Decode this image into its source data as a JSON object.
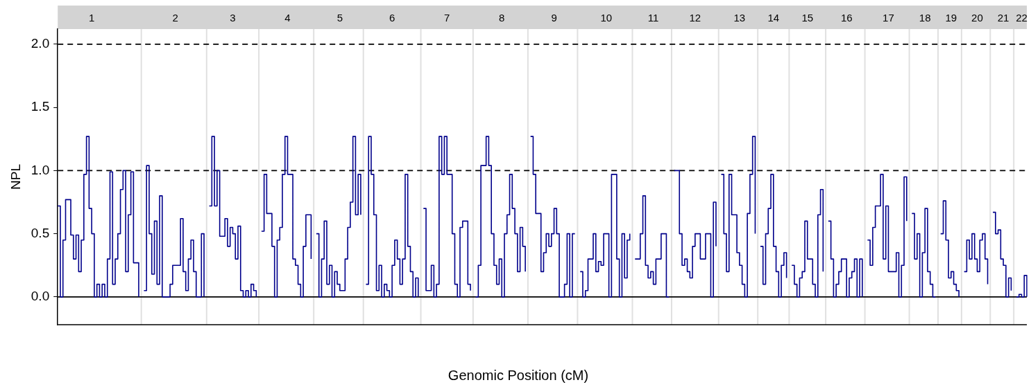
{
  "chart_data": {
    "type": "step",
    "xlabel": "Genomic Position (cM)",
    "ylabel": "NPL",
    "ylim": [
      -0.22,
      2.12
    ],
    "yticks": [
      {
        "value": 0,
        "label": "0.0"
      },
      {
        "value": 0.5,
        "label": "0.5"
      },
      {
        "value": 1,
        "label": "1.0"
      },
      {
        "value": 1.5,
        "label": "1.5"
      },
      {
        "value": 2,
        "label": "2.0"
      }
    ],
    "ref_lines": [
      {
        "axis": "y",
        "value": 0,
        "color": "#000000",
        "line_style": "solid"
      },
      {
        "axis": "y",
        "value": 1,
        "color": "#000000",
        "line_style": "dashed"
      },
      {
        "axis": "y",
        "value": 2,
        "color": "#000000",
        "line_style": "dashed"
      }
    ],
    "categories": [
      null,
      null,
      null,
      null,
      null,
      null,
      null,
      null,
      null,
      null,
      null,
      null,
      null,
      "1",
      null,
      null,
      null,
      null,
      null,
      null,
      null,
      null,
      null,
      null,
      null,
      null,
      null,
      null,
      null,
      null,
      null,
      null,
      null,
      null,
      null,
      null,
      null,
      null,
      null,
      null,
      null,
      null,
      null,
      null,
      null,
      "2",
      null,
      null,
      null,
      null,
      null,
      null,
      null,
      null,
      null,
      null,
      null,
      null,
      null,
      null,
      null,
      null,
      null,
      null,
      null,
      null,
      null,
      "3",
      null,
      null,
      null,
      null,
      null,
      null,
      null,
      null,
      null,
      null,
      null,
      null,
      null,
      null,
      null,
      null,
      null,
      null,
      null,
      null,
      "4",
      null,
      null,
      null,
      null,
      null,
      null,
      null,
      null,
      null,
      null,
      null,
      null,
      null,
      null,
      null,
      null,
      null,
      null,
      null,
      "5",
      null,
      null,
      null,
      null,
      null,
      null,
      null,
      null,
      null,
      null,
      null,
      null,
      null,
      null,
      null,
      null,
      null,
      null,
      null,
      "6",
      null,
      null,
      null,
      null,
      null,
      null,
      null,
      null,
      null,
      null,
      null,
      null,
      null,
      null,
      null,
      null,
      null,
      null,
      null,
      null,
      "7",
      null,
      null,
      null,
      null,
      null,
      null,
      null,
      null,
      null,
      null,
      null,
      null,
      null,
      null,
      null,
      null,
      null,
      null,
      null,
      null,
      "8",
      null,
      null,
      null,
      null,
      null,
      null,
      null,
      null,
      null,
      null,
      null,
      null,
      null,
      null,
      null,
      null,
      null,
      null,
      null,
      "9",
      null,
      null,
      null,
      null,
      null,
      null,
      null,
      null,
      null,
      null,
      null,
      null,
      null,
      null,
      null,
      null,
      null,
      null,
      null,
      "10",
      null,
      null,
      null,
      null,
      null,
      null,
      null,
      null,
      null,
      null,
      null,
      null,
      null,
      null,
      null,
      null,
      null,
      "11",
      null,
      null,
      null,
      null,
      null,
      null,
      null,
      null,
      null,
      null,
      null,
      null,
      null,
      null,
      null,
      "12",
      null,
      null,
      null,
      null,
      null,
      null,
      null,
      null,
      null,
      null,
      null,
      null,
      null,
      null,
      null,
      null,
      "13",
      null,
      null,
      null,
      null,
      null,
      null,
      null,
      null,
      null,
      null,
      null,
      null,
      "14",
      null,
      null,
      null,
      null,
      null,
      null,
      null,
      null,
      null,
      null,
      null,
      null,
      "15",
      null,
      null,
      null,
      null,
      null,
      null,
      null,
      null,
      null,
      null,
      null,
      null,
      null,
      null,
      "16",
      null,
      null,
      null,
      null,
      null,
      null,
      null,
      null,
      null,
      null,
      null,
      null,
      null,
      null,
      null,
      "17",
      null,
      null,
      null,
      null,
      null,
      null,
      null,
      null,
      null,
      null,
      null,
      null,
      null,
      "18",
      null,
      null,
      null,
      null,
      null,
      null,
      null,
      null,
      null,
      "19",
      null,
      null,
      null,
      null,
      null,
      null,
      null,
      null,
      null,
      "20",
      null,
      null,
      null,
      null,
      null,
      null,
      null,
      null,
      null,
      "21",
      null,
      null,
      null,
      null,
      null,
      null,
      "22",
      null,
      null
    ],
    "series": [
      {
        "color": "#00008b",
        "line_style": "solid",
        "marker": "none",
        "values": [
          0.72,
          0,
          0.45,
          0.77,
          0.77,
          0.49,
          0.3,
          0.49,
          0.2,
          0.45,
          0.97,
          1.27,
          0.7,
          0.5,
          0,
          0.1,
          0,
          0.1,
          0,
          0.3,
          0.99,
          0.1,
          0.3,
          0.5,
          0.85,
          1.0,
          0.2,
          0.65,
          0.99,
          0.27,
          0.27,
          0,
          null,
          0.05,
          1.04,
          0.5,
          0.18,
          0.6,
          0.1,
          0.8,
          0,
          0,
          0,
          0.1,
          0.25,
          0.25,
          0.25,
          0.62,
          0.2,
          0.05,
          0.3,
          0.45,
          0.2,
          0,
          0,
          0.5,
          0,
          null,
          0.72,
          1.27,
          0.72,
          1.0,
          0.48,
          0.48,
          0.62,
          0.4,
          0.55,
          0.5,
          0.3,
          0.56,
          0.05,
          0,
          0.05,
          0,
          0.1,
          0.05,
          0,
          null,
          0.52,
          0.97,
          0.66,
          0.66,
          0.4,
          0,
          0.45,
          0.55,
          0.97,
          1.27,
          0.97,
          0.97,
          0.3,
          0.25,
          0.1,
          0,
          0.4,
          0.65,
          0.65,
          0.3,
          null,
          0.5,
          0,
          0.3,
          0.6,
          0.1,
          0.25,
          0,
          0.2,
          0.1,
          0.05,
          0.05,
          0.3,
          0.55,
          0.75,
          1.27,
          0.65,
          0.97,
          0.65,
          null,
          0.1,
          1.27,
          0.97,
          0.65,
          0.05,
          0.25,
          0,
          0.1,
          0.05,
          0,
          0.25,
          0.45,
          0.3,
          0.1,
          0.3,
          0.97,
          0.4,
          0.2,
          0,
          0.15,
          0,
          null,
          0.7,
          0.05,
          0.05,
          0.25,
          0,
          0.1,
          1.27,
          0.97,
          1.27,
          0.97,
          0.97,
          0.5,
          0.1,
          0,
          0.55,
          0.6,
          0.6,
          0.1,
          0.05,
          null,
          0,
          0.25,
          1.04,
          1.04,
          1.27,
          1.04,
          0.5,
          0.25,
          0.1,
          0.3,
          0,
          0.5,
          0.65,
          0.97,
          0.7,
          0.5,
          0.2,
          0.55,
          0.4,
          0.2,
          null,
          1.27,
          0.97,
          0.66,
          0.66,
          0.2,
          0.35,
          0.5,
          0.4,
          0.5,
          0.7,
          0.5,
          0,
          0,
          0.1,
          0.5,
          0,
          0.5,
          0.5,
          null,
          0.2,
          0,
          0.05,
          0.3,
          0.3,
          0.5,
          0.2,
          0.28,
          0.25,
          0.5,
          0.5,
          0,
          0.97,
          0.97,
          0.3,
          0,
          0.5,
          0.15,
          0.45,
          0.5,
          null,
          0.3,
          0.3,
          0.5,
          0.8,
          0.25,
          0.15,
          0.2,
          0.1,
          0.3,
          0.3,
          0.5,
          0.5,
          0,
          0,
          null,
          1.0,
          1.0,
          0.5,
          0.25,
          0.3,
          0.2,
          0.15,
          0.4,
          0.5,
          0.5,
          0.3,
          0.3,
          0.5,
          0.5,
          0,
          0.75,
          0.4,
          null,
          0.97,
          0.5,
          0.2,
          0.97,
          0.65,
          0.65,
          0.35,
          0.25,
          0.1,
          0,
          0.66,
          0.97,
          1.27,
          0.5,
          null,
          0.4,
          0.1,
          0.5,
          0.7,
          0.97,
          0.4,
          0.2,
          0,
          0.25,
          0.35,
          0.15,
          null,
          0.25,
          0.1,
          0,
          0.15,
          0.2,
          0.6,
          0.3,
          0.3,
          0.1,
          0,
          0.65,
          0.85,
          0.2,
          null,
          0.6,
          0.3,
          0,
          0.1,
          0.2,
          0.3,
          0.3,
          0,
          0.15,
          0.2,
          0.3,
          0,
          0.3,
          0,
          null,
          0.45,
          0.25,
          0.55,
          0.72,
          0.72,
          0.97,
          0.3,
          0.72,
          0.2,
          0.2,
          0.2,
          0.35,
          0,
          0.25,
          0.95,
          0.6,
          null,
          0.66,
          0.3,
          0.5,
          0,
          0.35,
          0.7,
          0.2,
          0.1,
          0,
          0,
          null,
          0.5,
          0.76,
          0.45,
          0.15,
          0.2,
          0.1,
          0.05,
          0,
          null,
          0.2,
          0.45,
          0.3,
          0.5,
          0.3,
          0.2,
          0.45,
          0.5,
          0.3,
          0.1,
          null,
          0.67,
          0.5,
          0.53,
          0.3,
          0.25,
          0,
          0.15,
          0.05,
          null,
          0,
          0.02,
          0,
          0.17,
          0
        ]
      }
    ]
  }
}
